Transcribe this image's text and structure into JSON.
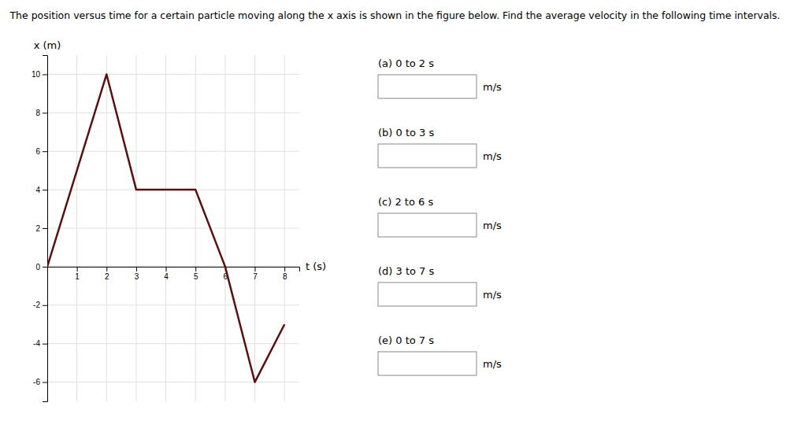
{
  "chart_data": {
    "type": "line",
    "title": "The position versus time for a certain particle moving along the x axis is shown in the figure below. Find the average velocity in the following time intervals.",
    "x_label": "t (s)",
    "y_label": "x (m)",
    "x": [
      0,
      2,
      3,
      5,
      6,
      7,
      8
    ],
    "values": [
      0,
      10,
      4,
      4,
      0,
      -6,
      -3
    ],
    "color": "#5a1010",
    "xlim": [
      0,
      8.5
    ],
    "ylim": [
      -7,
      11
    ],
    "xticks": [
      1,
      2,
      3,
      4,
      5,
      6,
      7,
      8
    ],
    "yticks": [
      -6,
      -4,
      -2,
      0,
      2,
      4,
      6,
      8,
      10
    ],
    "grid": true,
    "annotations": [
      {
        "text": "(a) 0 to 2 s",
        "units": "m/s"
      },
      {
        "text": "(b) 0 to 3 s",
        "units": "m/s"
      },
      {
        "text": "(c) 2 to 6 s",
        "units": "m/s"
      },
      {
        "text": "(d) 3 to 7 s",
        "units": "m/s"
      },
      {
        "text": "(e) 0 to 7 s",
        "units": "m/s"
      }
    ]
  }
}
